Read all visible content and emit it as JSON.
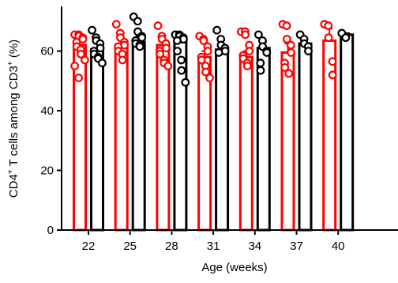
{
  "chart_data": {
    "type": "bar",
    "xlabel": "Age (weeks)",
    "ylabel_main": "CD4",
    "ylabel_sup1": "+",
    "ylabel_mid": " T cells among CD3",
    "ylabel_sup2": "+",
    "ylabel_tail": " (%)",
    "ylim": [
      0,
      75
    ],
    "yticks": [
      0,
      20,
      40,
      60
    ],
    "categories": [
      "22",
      "25",
      "28",
      "31",
      "34",
      "37",
      "40"
    ],
    "series": [
      {
        "color": "#ff0000",
        "means": [
          62,
          62,
          62,
          58,
          58,
          59.5,
          63.5
        ],
        "errors": [
          2.5,
          2,
          2,
          2,
          2,
          3,
          4
        ],
        "points": [
          [
            65.5,
            65.5,
            65,
            64.5,
            64,
            63,
            61.5,
            60.5,
            59,
            57,
            55,
            51
          ],
          [
            69,
            66,
            64.5,
            63,
            62,
            61.5,
            60,
            59,
            57
          ],
          [
            68.5,
            65,
            64,
            62.5,
            61,
            60,
            59,
            57,
            56,
            55
          ],
          [
            65,
            64,
            63.5,
            61.5,
            60,
            58,
            57,
            55,
            53,
            51
          ],
          [
            66.5,
            66.5,
            65.5,
            62,
            60,
            58.5,
            57.5,
            56,
            55
          ],
          [
            69,
            68.5,
            64,
            62,
            59.5,
            56,
            54.5,
            52.5
          ],
          [
            69,
            68.5,
            64.5,
            56.5,
            52
          ]
        ]
      },
      {
        "color": "#000000",
        "means": [
          60.5,
          63,
          63,
          60.5,
          61,
          62.5,
          65.5
        ],
        "errors": [
          2,
          2,
          3,
          1.5,
          2,
          1.5,
          0.5
        ],
        "points": [
          [
            67,
            64.5,
            63.5,
            62.5,
            61,
            60,
            59,
            58,
            57.5,
            56
          ],
          [
            71.5,
            70,
            66.5,
            65,
            64.5,
            63.5,
            62.5,
            62,
            61.5
          ],
          [
            65.5,
            65.5,
            65,
            64.5,
            64,
            63.5,
            60,
            57,
            53.5,
            49.5
          ],
          [
            67,
            64,
            62,
            61,
            60,
            59.5
          ],
          [
            65.5,
            63.5,
            61.5,
            60,
            59.5,
            56,
            53.5
          ],
          [
            65.5,
            64,
            62.5,
            61.5,
            60
          ],
          [
            66,
            64.5
          ]
        ]
      }
    ]
  }
}
